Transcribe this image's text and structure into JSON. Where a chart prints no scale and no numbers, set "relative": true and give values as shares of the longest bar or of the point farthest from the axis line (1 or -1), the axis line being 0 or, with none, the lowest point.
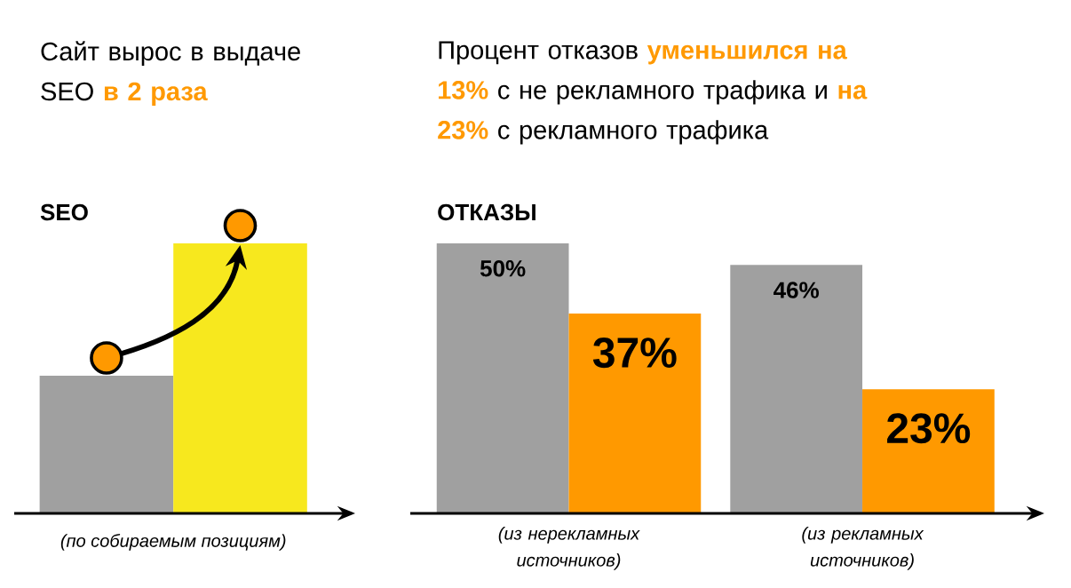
{
  "chart_data": [
    {
      "type": "bar",
      "title": "Сайт вырос в выдаче SEO **в 2 раза**",
      "subtitle": "SEO",
      "xlabel": "(по собираемым позициям)",
      "categories": [
        null,
        null
      ],
      "values": [
        0.51,
        1
      ],
      "colors": [
        "#a0a0a0",
        "#f7e81e"
      ],
      "relative": true
    },
    {
      "type": "bar",
      "title": "Процент отказов **уменьшился на 13%** с не рекламного трафика и **на 23%** с рекламного трафика",
      "subtitle": "ОТКАЗЫ",
      "categories": [
        "(из нерекламных источников)",
        "(из рекламных источников)"
      ],
      "series": [
        {
          "color": "#a0a0a0",
          "values": [
            50,
            46
          ],
          "value_labels": [
            "50%",
            "46%"
          ]
        },
        {
          "color": "#ff9900",
          "values": [
            37,
            23
          ],
          "value_labels": [
            "37%",
            "23%"
          ]
        }
      ]
    }
  ]
}
